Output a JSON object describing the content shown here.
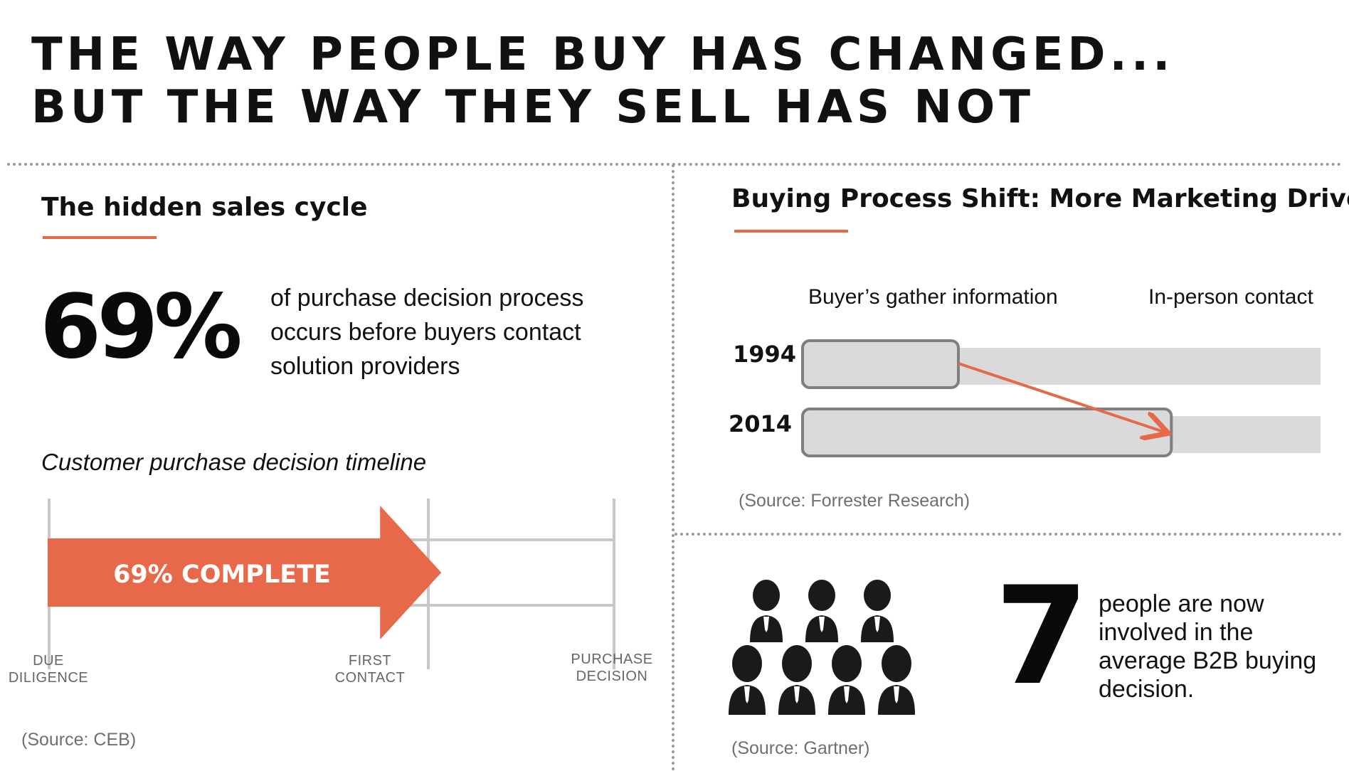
{
  "headline": {
    "line1": "THE WAY PEOPLE BUY HAS CHANGED...",
    "line2": "BUT THE WAY THEY SELL HAS NOT"
  },
  "colors": {
    "accent": "#e8694a",
    "bar_gray": "#dadada",
    "frame_gray": "#7f7f7f",
    "text": "#111111"
  },
  "left_panel": {
    "title": "The hidden sales cycle",
    "stat_value": "69%",
    "stat_desc_lines": [
      "of purchase decision process",
      "occurs before buyers contact",
      "solution providers"
    ],
    "timeline_title": "Customer purchase decision timeline",
    "timeline_progress_fraction": 0.69,
    "arrow_label": "69% COMPLETE",
    "milestones": [
      {
        "line1": "DUE",
        "line2": "DILIGENCE"
      },
      {
        "line1": "FIRST",
        "line2": "CONTACT"
      },
      {
        "line1": "PURCHASE",
        "line2": "DECISION"
      }
    ],
    "source": "(Source: CEB)"
  },
  "right_top_panel": {
    "title": "Buying Process Shift: More Marketing Driven",
    "legend": {
      "gather": "Buyer’s gather information",
      "contact": "In-person contact"
    },
    "chart_data": {
      "type": "bar",
      "categories": [
        "1994",
        "2014"
      ],
      "series": [
        {
          "name": "Buyer’s gather information",
          "values": [
            0.3,
            0.71
          ]
        },
        {
          "name": "In-person contact",
          "values": [
            0.7,
            0.29
          ]
        }
      ],
      "xlim": [
        0,
        1
      ],
      "legend_position": "top"
    },
    "source": "(Source: Forrester Research)"
  },
  "right_bottom_panel": {
    "icon": "group-of-people-icon",
    "stat_value": "7",
    "stat_desc_lines": [
      "people are now",
      "involved in the",
      "average B2B buying",
      "decision."
    ],
    "source": "(Source: Gartner)"
  }
}
